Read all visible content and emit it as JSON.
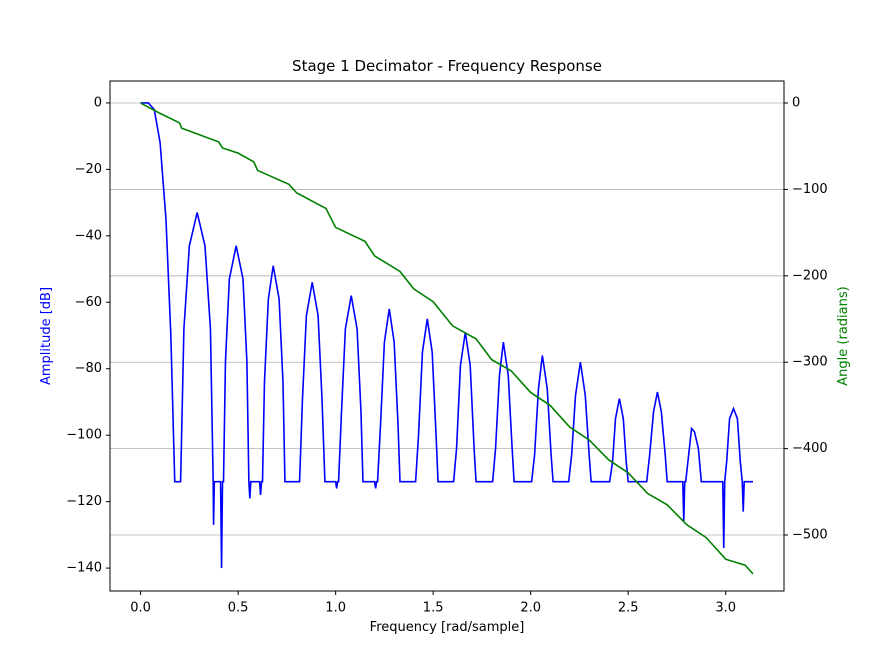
{
  "chart_data": {
    "type": "line",
    "title": "Stage 1 Decimator - Frequency Response",
    "x_label": "Frequency [rad/sample]",
    "y_label": "Amplitude [dB]",
    "y2_label": "Angle (radians)",
    "xlim": [
      -0.157,
      3.299
    ],
    "ylim": [
      -146.9,
      6.6
    ],
    "y2lim": [
      -564.8,
      25.5
    ],
    "xticks": [
      {
        "value": 0,
        "label": "0.0"
      },
      {
        "value": 0.5,
        "label": "0.5"
      },
      {
        "value": 1,
        "label": "1.0"
      },
      {
        "value": 1.5,
        "label": "1.5"
      },
      {
        "value": 2,
        "label": "2.0"
      },
      {
        "value": 2.5,
        "label": "2.5"
      },
      {
        "value": 3,
        "label": "3.0"
      }
    ],
    "yticks": [
      0,
      {
        "value": -20,
        "label": "−20"
      },
      {
        "value": -40,
        "label": "−40"
      },
      {
        "value": -60,
        "label": "−60"
      },
      {
        "value": -80,
        "label": "−80"
      },
      {
        "value": -100,
        "label": "−100"
      },
      {
        "value": -120,
        "label": "−120"
      },
      {
        "value": -140,
        "label": "−140"
      }
    ],
    "y2ticks": [
      0,
      {
        "value": -100,
        "label": "−100"
      },
      {
        "value": -200,
        "label": "−200"
      },
      {
        "value": -300,
        "label": "−300"
      },
      {
        "value": -400,
        "label": "−400"
      },
      {
        "value": -500,
        "label": "−500"
      }
    ],
    "grid": "y2",
    "series": [
      {
        "color": "#0000ff",
        "axis": "y",
        "x": [
          0,
          0.04,
          0.07,
          0.1,
          0.13,
          0.155,
          0.175,
          0.2,
          0.205,
          0.222,
          0.25,
          0.29,
          0.33,
          0.358,
          0.372,
          0.374,
          0.378,
          0.41,
          0.415,
          0.42,
          0.425,
          0.435,
          0.455,
          0.49,
          0.525,
          0.545,
          0.555,
          0.56,
          0.565,
          0.61,
          0.615,
          0.62,
          0.625,
          0.635,
          0.655,
          0.68,
          0.71,
          0.73,
          0.74,
          0.81,
          0.815,
          0.83,
          0.85,
          0.88,
          0.91,
          0.93,
          0.945,
          1.0,
          1.005,
          1.01,
          1.015,
          1.03,
          1.05,
          1.08,
          1.11,
          1.13,
          1.14,
          1.2,
          1.205,
          1.21,
          1.215,
          1.23,
          1.25,
          1.275,
          1.3,
          1.32,
          1.33,
          1.4,
          1.41,
          1.425,
          1.445,
          1.47,
          1.495,
          1.515,
          1.525,
          1.6,
          1.605,
          1.62,
          1.64,
          1.665,
          1.69,
          1.71,
          1.72,
          1.8,
          1.805,
          1.82,
          1.84,
          1.86,
          1.885,
          1.905,
          1.915,
          2.0,
          2.005,
          2.02,
          2.04,
          2.06,
          2.085,
          2.105,
          2.115,
          2.19,
          2.195,
          2.21,
          2.23,
          2.255,
          2.28,
          2.3,
          2.31,
          2.4,
          2.405,
          2.42,
          2.435,
          2.455,
          2.475,
          2.49,
          2.5,
          2.59,
          2.595,
          2.61,
          2.63,
          2.65,
          2.67,
          2.69,
          2.7,
          2.78,
          2.785,
          2.79,
          2.795,
          2.81,
          2.825,
          2.84,
          2.86,
          2.875,
          2.985,
          2.99,
          2.995,
          3.005,
          3.02,
          3.04,
          3.06,
          3.075,
          3.085,
          3.09,
          3.095,
          3.14
        ],
        "values": [
          0,
          0,
          -2,
          -12,
          -35,
          -70,
          -114,
          -114,
          -114,
          -68,
          -43,
          -33,
          -43,
          -68,
          -114,
          -127,
          -114,
          -114,
          -140,
          -114,
          -114,
          -78,
          -53,
          -43,
          -53,
          -78,
          -114,
          -119,
          -114,
          -114,
          -118,
          -114,
          -114,
          -84,
          -59,
          -49,
          -59,
          -84,
          -114,
          -114,
          -114,
          -89,
          -64,
          -54,
          -64,
          -89,
          -114,
          -114,
          -116,
          -114,
          -114,
          -93,
          -68,
          -58,
          -68,
          -93,
          -114,
          -114,
          -116,
          -114,
          -114,
          -97,
          -72,
          -62,
          -72,
          -97,
          -114,
          -114,
          -114,
          -100,
          -75,
          -65,
          -75,
          -100,
          -114,
          -114,
          -114,
          -104,
          -79,
          -69,
          -79,
          -104,
          -114,
          -114,
          -114,
          -104,
          -82,
          -72,
          -82,
          -104,
          -114,
          -114,
          -114,
          -106,
          -86,
          -76,
          -86,
          -106,
          -114,
          -114,
          -114,
          -106,
          -88,
          -78,
          -88,
          -106,
          -114,
          -114,
          -114,
          -108,
          -95,
          -89,
          -95,
          -108,
          -114,
          -114,
          -114,
          -106,
          -93,
          -87,
          -93,
          -106,
          -114,
          -114,
          -126,
          -114,
          -114,
          -106,
          -98,
          -99,
          -104,
          -114,
          -114,
          -134,
          -114,
          -108,
          -95,
          -92,
          -95,
          -108,
          -114,
          -123,
          -114,
          -114
        ]
      },
      {
        "color": "#008000",
        "axis": "y2",
        "x": [
          0,
          0.1,
          0.2,
          0.21,
          0.4,
          0.42,
          0.5,
          0.58,
          0.6,
          0.76,
          0.8,
          0.95,
          1.0,
          1.15,
          1.2,
          1.33,
          1.4,
          1.5,
          1.6,
          1.72,
          1.8,
          1.9,
          2.0,
          2.1,
          2.2,
          2.3,
          2.4,
          2.5,
          2.6,
          2.7,
          2.8,
          2.9,
          3.0,
          3.1,
          3.14
        ],
        "values": [
          0,
          -12,
          -23,
          -29,
          -45,
          -52,
          -58,
          -68,
          -78,
          -94,
          -104,
          -122,
          -144,
          -160,
          -177,
          -195,
          -215,
          -230,
          -258,
          -273,
          -297,
          -310,
          -335,
          -350,
          -375,
          -390,
          -413,
          -428,
          -452,
          -465,
          -488,
          -503,
          -528,
          -535,
          -545
        ]
      }
    ]
  }
}
